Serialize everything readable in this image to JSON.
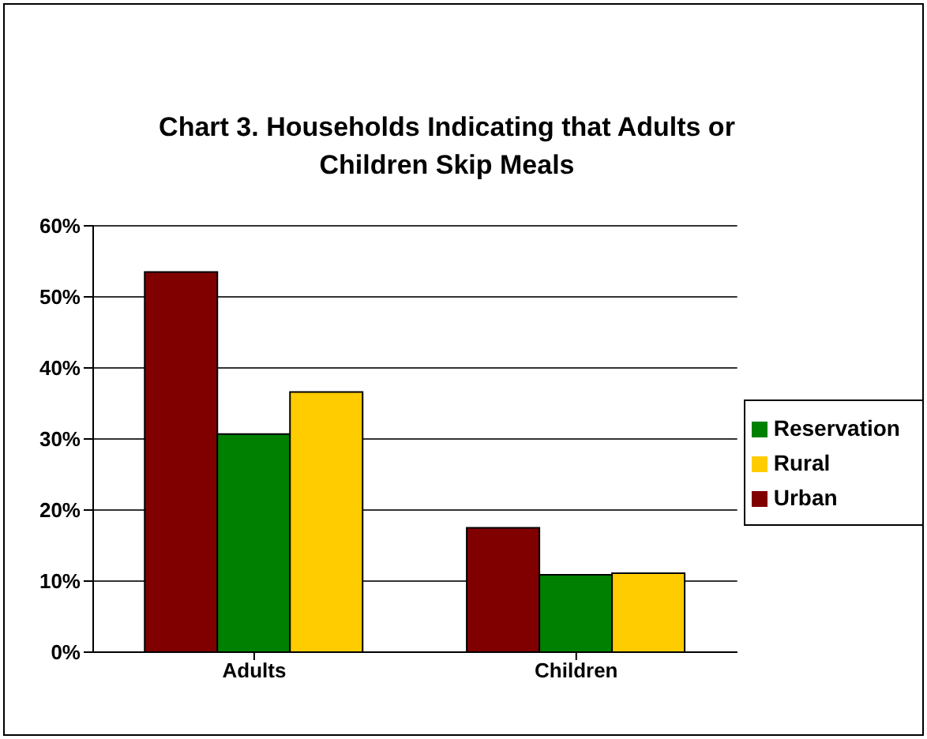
{
  "chart_data": {
    "type": "bar",
    "title": "Chart 3. Households Indicating that Adults or Children Skip Meals",
    "categories": [
      "Adults",
      "Children"
    ],
    "series": [
      {
        "name": "Urban",
        "color": "#800000",
        "values": [
          53.5,
          17.5
        ]
      },
      {
        "name": "Reservation",
        "color": "#008000",
        "values": [
          30.7,
          10.9
        ]
      },
      {
        "name": "Rural",
        "color": "#ffcc00",
        "values": [
          36.6,
          11.1
        ]
      }
    ],
    "ylim": [
      0,
      60
    ],
    "yticks": [
      {
        "value": 0,
        "label": "0%"
      },
      {
        "value": 10,
        "label": "10%"
      },
      {
        "value": 20,
        "label": "20%"
      },
      {
        "value": 30,
        "label": "30%"
      },
      {
        "value": 40,
        "label": "40%"
      },
      {
        "value": 50,
        "label": "50%"
      },
      {
        "value": 60,
        "label": "60%"
      }
    ],
    "grid": "y",
    "legend": "right"
  }
}
